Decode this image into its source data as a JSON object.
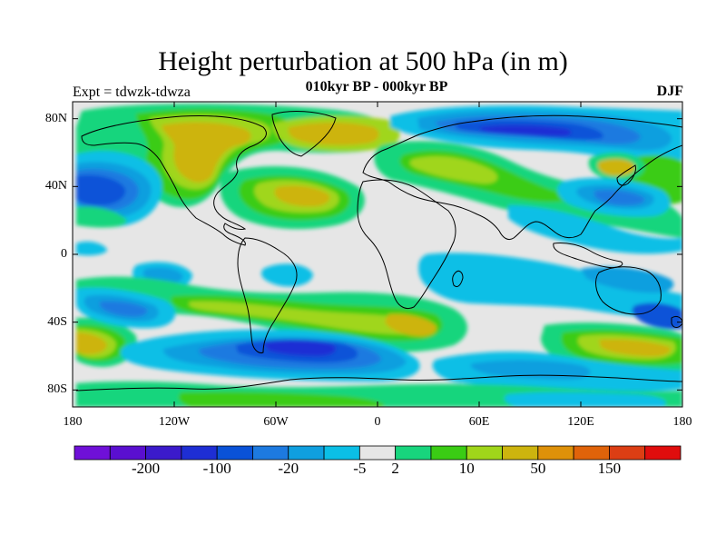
{
  "title": "Height perturbation at 500 hPa (in m)",
  "subtitle": "010kyr BP - 000kyr BP",
  "left_label": "Expt = tdwzk-tdwza",
  "right_label": "DJF",
  "map": {
    "lon_range": [
      -180,
      180
    ],
    "lat_range": [
      -90,
      90
    ],
    "lat_ticks": [
      {
        "value": 80,
        "label": "80N"
      },
      {
        "value": 40,
        "label": "40N"
      },
      {
        "value": 0,
        "label": "0"
      },
      {
        "value": -40,
        "label": "40S"
      },
      {
        "value": -80,
        "label": "80S"
      }
    ],
    "lon_ticks": [
      {
        "value": -180,
        "label": "180"
      },
      {
        "value": -120,
        "label": "120W"
      },
      {
        "value": -60,
        "label": "60W"
      },
      {
        "value": 0,
        "label": "0"
      },
      {
        "value": 60,
        "label": "60E"
      },
      {
        "value": 120,
        "label": "120E"
      },
      {
        "value": 180,
        "label": "180"
      }
    ]
  },
  "colorbar": {
    "colors": [
      "#6f10d8",
      "#5a0fd0",
      "#3b1acb",
      "#1e2ed4",
      "#0a52d8",
      "#1d7ae0",
      "#0f9fdf",
      "#0bbfe6",
      "#e6e6e6",
      "#18d57d",
      "#3acc14",
      "#a0d61a",
      "#cdb40e",
      "#de9109",
      "#e0630a",
      "#dc3e14",
      "#e00d0d"
    ],
    "labels": [
      {
        "text": "-200",
        "index": 2
      },
      {
        "text": "-100",
        "index": 4
      },
      {
        "text": "-20",
        "index": 6
      },
      {
        "text": "-5",
        "index": 8
      },
      {
        "text": "2",
        "index": 9
      },
      {
        "text": "10",
        "index": 11
      },
      {
        "text": "50",
        "index": 13
      },
      {
        "text": "150",
        "index": 15
      }
    ]
  }
}
